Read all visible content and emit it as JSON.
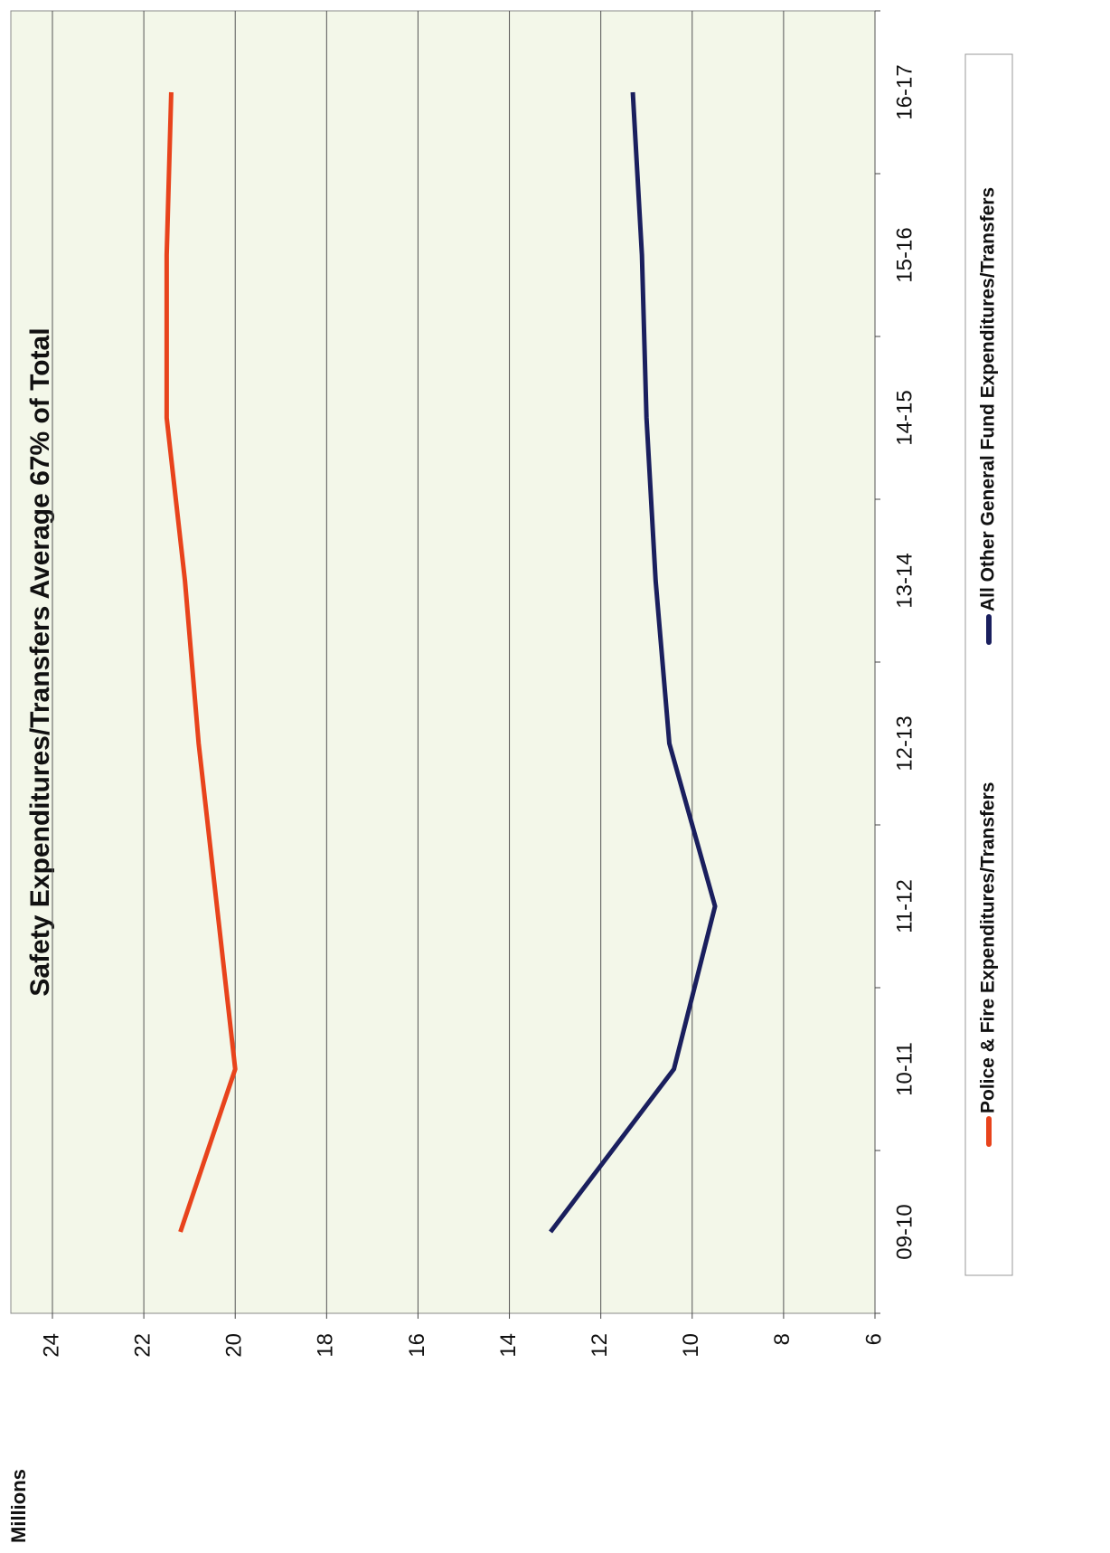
{
  "chart_data": {
    "type": "line",
    "title": "Safety Expenditures/Transfers Average 67% of Total",
    "y_axis_label": "Millions",
    "categories": [
      "09-10",
      "10-11",
      "11-12",
      "12-13",
      "13-14",
      "14-15",
      "15-16",
      "16-17"
    ],
    "series": [
      {
        "name": "Police & Fire Expenditures/Transfers",
        "color": "#e8431c",
        "values": [
          21.2,
          20.0,
          20.4,
          20.8,
          21.1,
          21.5,
          21.5,
          21.4
        ]
      },
      {
        "name": "All Other General Fund Expenditures/Transfers",
        "color": "#1a1f5e",
        "values": [
          13.1,
          10.4,
          9.5,
          10.5,
          10.8,
          11.0,
          11.1,
          11.3
        ]
      }
    ],
    "ylim": [
      6,
      24
    ],
    "yticks": [
      6,
      8,
      10,
      12,
      14,
      16,
      18,
      20,
      22,
      24
    ],
    "grid": true,
    "legend": "bottom"
  }
}
